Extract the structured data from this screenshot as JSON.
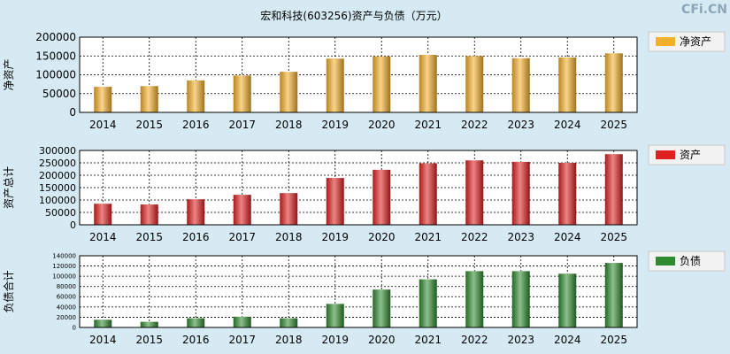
{
  "title": "宏和科技(603256)资产与负债（万元）",
  "watermark": "CFi.CN",
  "colors": {
    "background": "#d6eaf3",
    "plot_bg": "#ffffff",
    "net_assets": "#f5b02a",
    "total_assets": "#e02020",
    "liabilities": "#2e8b2e",
    "legend_bg": "#f2f2f2",
    "watermark": "#8aa6b8"
  },
  "chart_data": [
    {
      "type": "bar",
      "id": "net",
      "ylabel": "净资产",
      "legend": "净资产",
      "legend_position": "top-right",
      "grid": true,
      "categories": [
        "2014",
        "2015",
        "2016",
        "2017",
        "2018",
        "2019",
        "2020",
        "2021",
        "2022",
        "2023",
        "2024",
        "2025"
      ],
      "values": [
        68000,
        70000,
        85000,
        98000,
        108000,
        143000,
        149000,
        153000,
        150000,
        144000,
        146000,
        157000
      ],
      "ylim": [
        0,
        200000
      ],
      "yticks": [
        0,
        50000,
        100000,
        150000,
        200000
      ]
    },
    {
      "type": "bar",
      "id": "assets",
      "ylabel": "资产总计",
      "legend": "资产",
      "legend_position": "top-right",
      "grid": true,
      "categories": [
        "2014",
        "2015",
        "2016",
        "2017",
        "2018",
        "2019",
        "2020",
        "2021",
        "2022",
        "2023",
        "2024",
        "2025"
      ],
      "values": [
        85000,
        82000,
        103000,
        121000,
        128000,
        189000,
        222000,
        248000,
        260000,
        254000,
        250000,
        285000
      ],
      "ylim": [
        0,
        300000
      ],
      "yticks": [
        0,
        50000,
        100000,
        150000,
        200000,
        250000,
        300000
      ]
    },
    {
      "type": "bar",
      "id": "liab",
      "ylabel": "负债合计",
      "legend": "负债",
      "legend_position": "top-right",
      "grid": true,
      "categories": [
        "2014",
        "2015",
        "2016",
        "2017",
        "2018",
        "2019",
        "2020",
        "2021",
        "2022",
        "2023",
        "2024",
        "2025"
      ],
      "values": [
        15000,
        11000,
        18000,
        21000,
        18000,
        46000,
        74000,
        94000,
        110000,
        110000,
        105000,
        126000
      ],
      "ylim": [
        0,
        140000
      ],
      "yticks": [
        0,
        20000,
        40000,
        60000,
        80000,
        100000,
        120000,
        140000
      ]
    }
  ]
}
